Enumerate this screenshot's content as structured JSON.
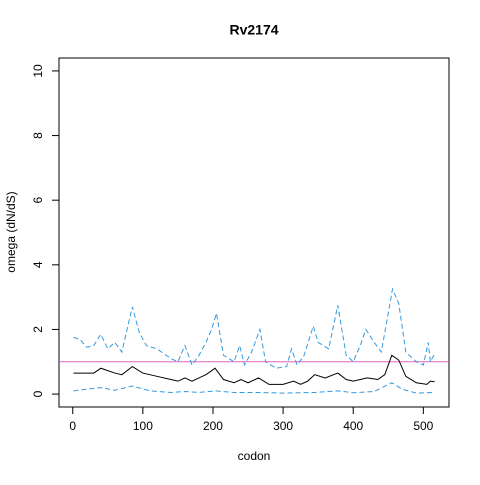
{
  "chart_data": {
    "type": "line",
    "title": "Rv2174",
    "xlabel": "codon",
    "ylabel": "omega (dN/dS)",
    "xlim": [
      -19.6,
      536.6
    ],
    "ylim": [
      -0.4,
      10.4
    ],
    "xticks": [
      0,
      100,
      200,
      300,
      400,
      500
    ],
    "yticks": [
      0,
      2,
      4,
      6,
      8,
      10
    ],
    "hline": 1,
    "hline_color": "#e066cc",
    "series": [
      {
        "color": "#000000",
        "dashed": false,
        "x": [
          1,
          30,
          40,
          60,
          70,
          85,
          100,
          120,
          140,
          150,
          160,
          170,
          180,
          190,
          203,
          215,
          230,
          240,
          250,
          265,
          280,
          300,
          315,
          325,
          335,
          345,
          360,
          378,
          390,
          400,
          420,
          435,
          445,
          455,
          465,
          475,
          490,
          505,
          510,
          516
        ],
        "values": [
          0.65,
          0.65,
          0.8,
          0.65,
          0.6,
          0.85,
          0.65,
          0.55,
          0.45,
          0.4,
          0.5,
          0.4,
          0.5,
          0.6,
          0.8,
          0.45,
          0.35,
          0.45,
          0.35,
          0.5,
          0.3,
          0.3,
          0.4,
          0.3,
          0.4,
          0.6,
          0.5,
          0.65,
          0.45,
          0.4,
          0.5,
          0.45,
          0.6,
          1.2,
          1.05,
          0.55,
          0.35,
          0.3,
          0.4,
          0.38
        ]
      },
      {
        "color": "#3399dd",
        "dashed": true,
        "x": [
          1,
          10,
          20,
          30,
          40,
          50,
          60,
          70,
          85,
          95,
          105,
          120,
          140,
          150,
          160,
          170,
          180,
          190,
          198,
          205,
          215,
          230,
          238,
          245,
          255,
          267,
          275,
          290,
          305,
          312,
          320,
          330,
          343,
          350,
          365,
          378,
          390,
          400,
          410,
          418,
          430,
          440,
          450,
          456,
          465,
          475,
          490,
          500,
          507,
          510,
          516
        ],
        "values": [
          1.75,
          1.7,
          1.45,
          1.5,
          1.85,
          1.4,
          1.6,
          1.3,
          2.7,
          1.9,
          1.5,
          1.4,
          1.1,
          1.0,
          1.5,
          0.9,
          1.2,
          1.6,
          2.0,
          2.5,
          1.2,
          1.0,
          1.5,
          0.9,
          1.3,
          2.0,
          1.0,
          0.8,
          0.85,
          1.4,
          0.9,
          1.2,
          2.1,
          1.6,
          1.4,
          2.75,
          1.2,
          1.0,
          1.5,
          2.0,
          1.6,
          1.3,
          2.5,
          3.25,
          2.8,
          1.3,
          1.0,
          0.9,
          1.6,
          1.0,
          1.25
        ]
      },
      {
        "color": "#3399dd",
        "dashed": true,
        "x": [
          1,
          20,
          40,
          60,
          85,
          110,
          140,
          160,
          180,
          203,
          230,
          265,
          300,
          345,
          378,
          400,
          430,
          455,
          470,
          490,
          516
        ],
        "values": [
          0.1,
          0.15,
          0.2,
          0.12,
          0.25,
          0.1,
          0.05,
          0.08,
          0.05,
          0.1,
          0.05,
          0.05,
          0.03,
          0.05,
          0.1,
          0.04,
          0.08,
          0.35,
          0.15,
          0.03,
          0.05
        ]
      }
    ]
  }
}
